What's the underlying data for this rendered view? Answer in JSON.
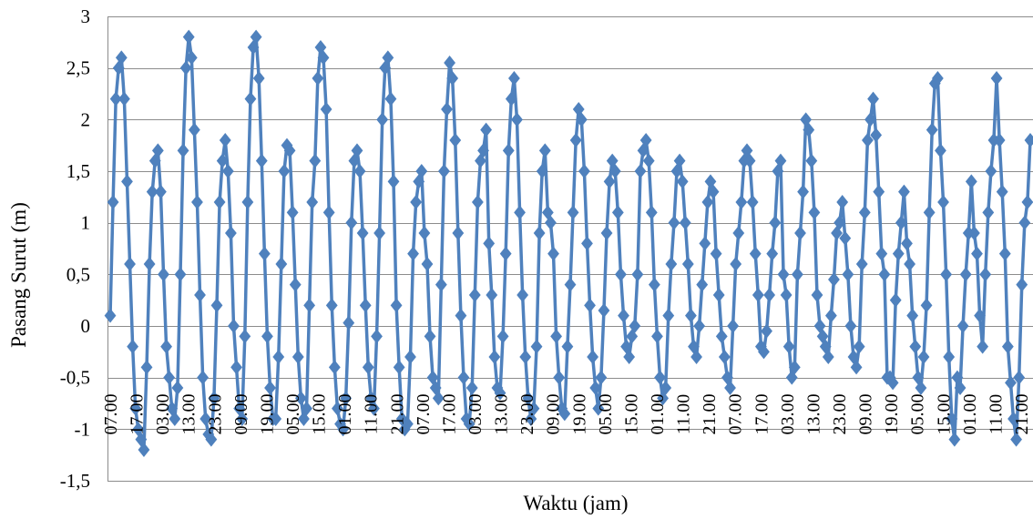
{
  "chart_data": {
    "type": "line",
    "xlabel": "Waktu (jam)",
    "ylabel": "Pasang Surut (m)",
    "ylim": [
      -1.5,
      3
    ],
    "yticks": [
      3,
      2.5,
      2,
      1.5,
      1,
      0.5,
      0,
      -0.5,
      -1,
      -1.5
    ],
    "ytick_labels": [
      "3",
      "2,5",
      "2",
      "1,5",
      "1",
      "0,5",
      "0",
      "-0,5",
      "-1",
      "-1,5"
    ],
    "grid": true,
    "legend": "none",
    "color": "#4f81bd",
    "x_tick_labels": [
      "07.00",
      "17.00",
      "03.00",
      "13.00",
      "23.00",
      "09.00",
      "19.00",
      "05.00",
      "15.00",
      "01.00",
      "11.00",
      "21.00",
      "07.00",
      "17.00",
      "03.00",
      "13.00",
      "23.00",
      "09.00",
      "19.00",
      "05.00",
      "15.00",
      "01.00",
      "11.00",
      "21.00",
      "07.00",
      "17.00",
      "03.00",
      "13.00",
      "23.00",
      "09.00",
      "19.00",
      "05.00",
      "15.00",
      "01.00",
      "11.00",
      "21.00"
    ],
    "series": [
      {
        "values": [
          0.1,
          1.2,
          2.2,
          2.5,
          2.6,
          2.2,
          1.4,
          0.6,
          -0.2,
          -0.8,
          -1.0,
          -1.1,
          -1.2,
          -0.4,
          0.6,
          1.3,
          1.6,
          1.7,
          1.3,
          0.5,
          -0.2,
          -0.5,
          -0.8,
          -0.9,
          -0.6,
          0.5,
          1.7,
          2.5,
          2.8,
          2.6,
          1.9,
          1.2,
          0.3,
          -0.5,
          -0.9,
          -1.05,
          -1.1,
          -0.7,
          0.2,
          1.2,
          1.6,
          1.8,
          1.5,
          0.9,
          0.0,
          -0.4,
          -0.8,
          -0.9,
          -0.1,
          1.2,
          2.2,
          2.7,
          2.8,
          2.4,
          1.6,
          0.7,
          -0.1,
          -0.6,
          -0.9,
          -0.9,
          -0.3,
          0.6,
          1.5,
          1.75,
          1.7,
          1.1,
          0.4,
          -0.3,
          -0.7,
          -0.9,
          -0.8,
          0.2,
          1.2,
          1.6,
          2.4,
          2.7,
          2.6,
          2.1,
          1.1,
          0.2,
          -0.4,
          -0.8,
          -0.95,
          -1.0,
          -0.7,
          0.03,
          1.0,
          1.6,
          1.7,
          1.5,
          0.9,
          0.2,
          -0.4,
          -0.7,
          -0.8,
          -0.1,
          0.9,
          2.0,
          2.5,
          2.6,
          2.2,
          1.4,
          0.2,
          -0.4,
          -0.9,
          -1.0,
          -0.95,
          -0.3,
          0.7,
          1.2,
          1.4,
          1.5,
          0.9,
          0.6,
          -0.1,
          -0.5,
          -0.6,
          -0.7,
          0.4,
          1.5,
          2.1,
          2.55,
          2.4,
          1.8,
          0.9,
          0.1,
          -0.5,
          -0.9,
          -0.95,
          -0.6,
          0.3,
          1.2,
          1.6,
          1.7,
          1.9,
          0.8,
          0.3,
          -0.3,
          -0.6,
          -0.65,
          -0.1,
          0.7,
          1.7,
          2.2,
          2.4,
          2.0,
          1.1,
          0.3,
          -0.3,
          -0.7,
          -0.9,
          -0.8,
          -0.2,
          0.9,
          1.5,
          1.7,
          1.1,
          1.0,
          0.7,
          -0.1,
          -0.5,
          -0.8,
          -0.85,
          -0.2,
          0.4,
          1.1,
          1.8,
          2.1,
          2.0,
          1.5,
          0.8,
          0.2,
          -0.3,
          -0.6,
          -0.8,
          -0.5,
          0.15,
          0.9,
          1.4,
          1.6,
          1.5,
          1.1,
          0.5,
          0.1,
          -0.2,
          -0.3,
          -0.1,
          0.0,
          0.5,
          1.5,
          1.7,
          1.8,
          1.6,
          1.1,
          0.4,
          -0.1,
          -0.5,
          -0.7,
          -0.6,
          0.1,
          0.6,
          1.0,
          1.5,
          1.6,
          1.4,
          1.0,
          0.6,
          0.1,
          -0.2,
          -0.3,
          0.0,
          0.4,
          0.8,
          1.2,
          1.4,
          1.3,
          0.7,
          0.3,
          -0.1,
          -0.3,
          -0.5,
          -0.6,
          0.0,
          0.6,
          0.9,
          1.2,
          1.6,
          1.7,
          1.6,
          1.2,
          0.7,
          0.3,
          -0.2,
          -0.25,
          -0.05,
          0.3,
          0.7,
          1.0,
          1.5,
          1.6,
          0.5,
          0.3,
          -0.2,
          -0.5,
          -0.4,
          0.5,
          0.9,
          1.3,
          2.0,
          1.9,
          1.6,
          1.1,
          0.3,
          0.0,
          -0.1,
          -0.2,
          -0.3,
          0.1,
          0.45,
          0.9,
          1.0,
          1.2,
          0.85,
          0.5,
          0.0,
          -0.3,
          -0.4,
          -0.2,
          0.6,
          1.1,
          1.8,
          2.0,
          2.2,
          1.85,
          1.3,
          0.7,
          0.5,
          -0.5,
          -0.5,
          -0.55,
          0.25,
          0.7,
          1.0,
          1.3,
          0.8,
          0.6,
          0.1,
          -0.2,
          -0.5,
          -0.6,
          -0.3,
          0.2,
          1.1,
          1.9,
          2.35,
          2.4,
          1.7,
          1.2,
          0.5,
          -0.3,
          -0.9,
          -1.1,
          -0.5,
          -0.6,
          0.0,
          0.5,
          0.9,
          1.4,
          0.9,
          0.7,
          0.1,
          -0.2,
          0.5,
          1.1,
          1.5,
          1.8,
          2.4,
          1.8,
          1.3,
          0.7,
          -0.2,
          -0.55,
          -0.9,
          -1.1,
          -0.5,
          0.4,
          1.0,
          1.2,
          1.8
        ]
      }
    ]
  }
}
